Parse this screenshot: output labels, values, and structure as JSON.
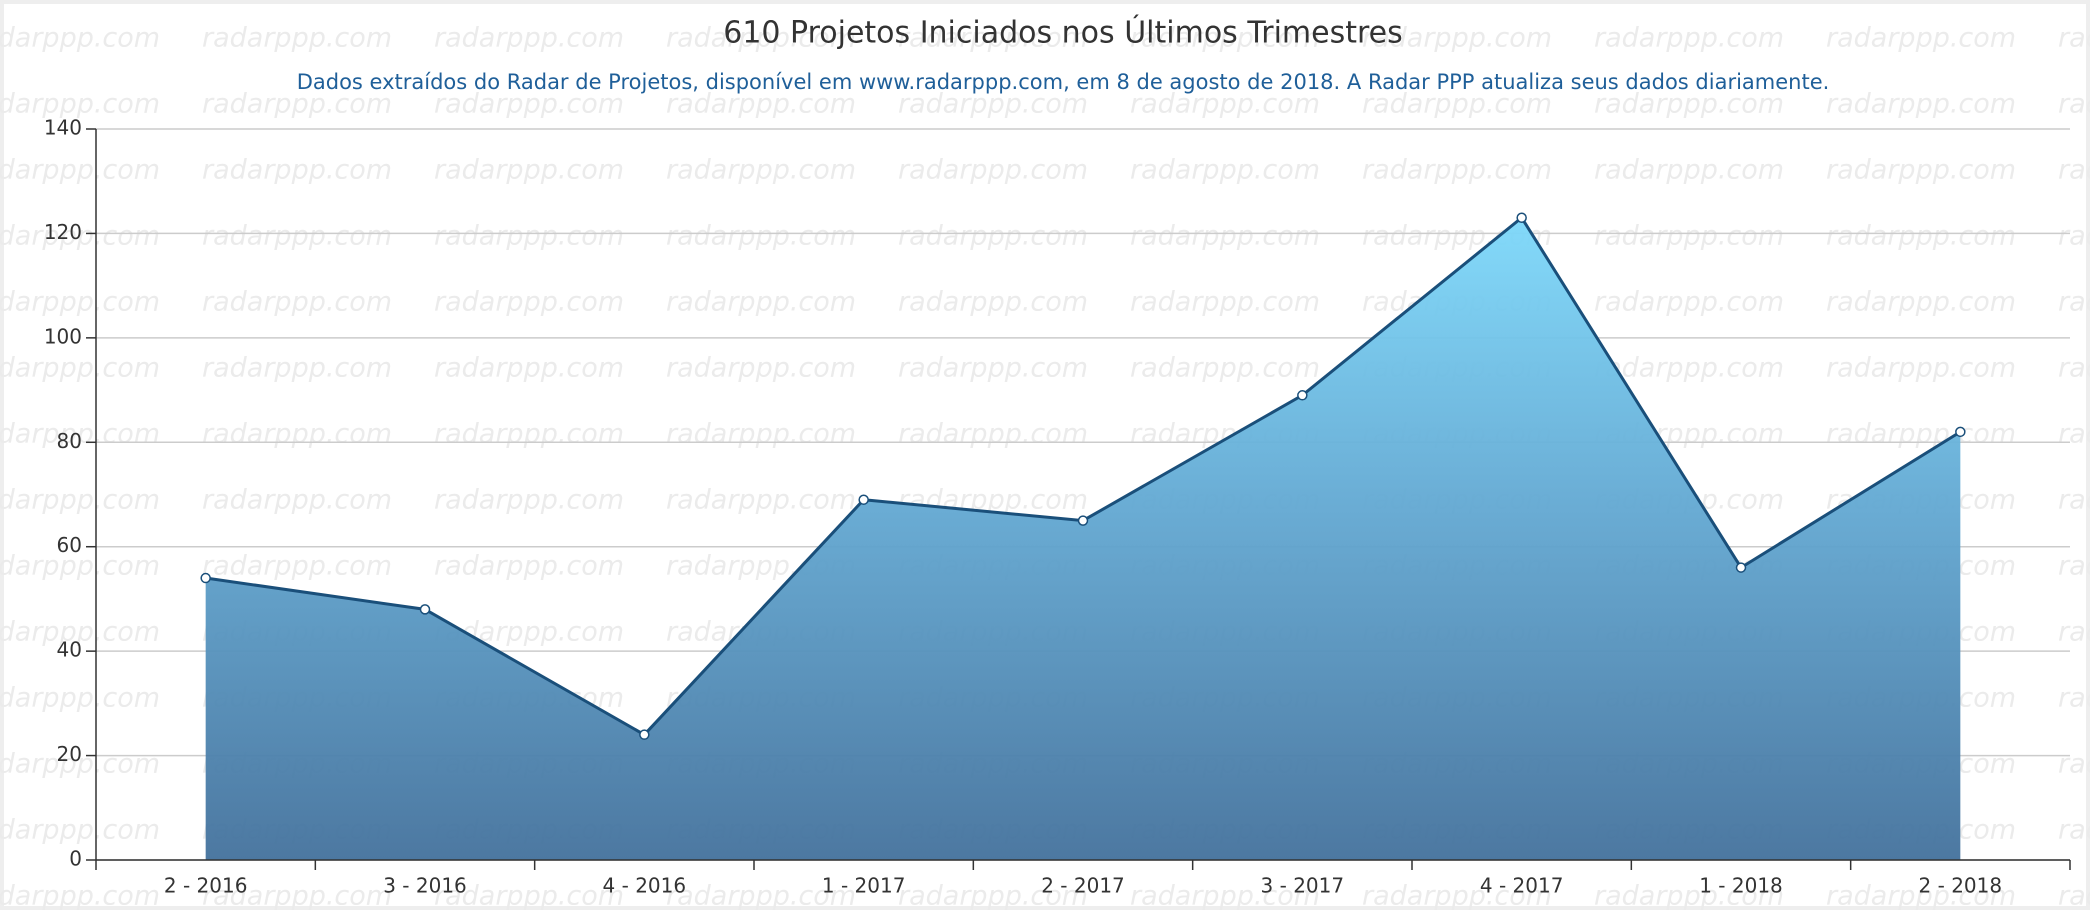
{
  "chart_data": {
    "type": "area",
    "title": "610 Projetos Iniciados nos Últimos Trimestres",
    "subtitle": "Dados extraídos do Radar de Projetos, disponível em www.radarppp.com, em 8 de agosto de 2018. A Radar PPP atualiza seus dados diariamente.",
    "watermark": "radarppp.com",
    "categories": [
      "2 - 2016",
      "3 - 2016",
      "4 - 2016",
      "1 - 2017",
      "2 - 2017",
      "3 - 2017",
      "4 - 2017",
      "1 - 2018",
      "2 - 2018"
    ],
    "values": [
      54,
      48,
      24,
      69,
      65,
      89,
      123,
      56,
      82
    ],
    "color": "#1a4f7a",
    "ylim": [
      0,
      140
    ],
    "yticks": [
      0,
      20,
      40,
      60,
      80,
      100,
      120,
      140
    ],
    "grid": true
  }
}
